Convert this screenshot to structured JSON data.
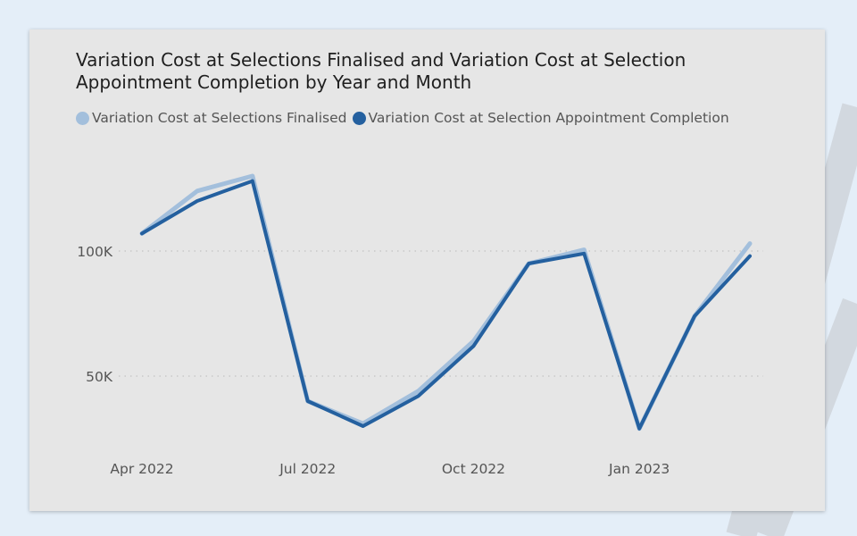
{
  "chart_data": {
    "type": "line",
    "title": "Variation Cost at Selections Finalised and Variation Cost at Selection Appointment Completion by Year and Month",
    "title_lines": [
      "Variation Cost at Selections Finalised and Variation Cost at Selection",
      "Appointment Completion by Year and Month"
    ],
    "x": [
      "2022-04",
      "2022-05",
      "2022-06",
      "2022-07",
      "2022-08",
      "2022-09",
      "2022-10",
      "2022-11",
      "2022-12",
      "2023-01",
      "2023-02",
      "2023-03"
    ],
    "x_tick_labels": [
      {
        "index": 0,
        "label": "Apr 2022"
      },
      {
        "index": 3,
        "label": "Jul 2022"
      },
      {
        "index": 6,
        "label": "Oct 2022"
      },
      {
        "index": 9,
        "label": "Jan 2023"
      }
    ],
    "y_ticks": [
      {
        "value": 50000,
        "label": "50K"
      },
      {
        "value": 100000,
        "label": 100000,
        "display": "100K"
      }
    ],
    "ylim": [
      20000,
      140000
    ],
    "grid": "dotted horizontal",
    "legend_position": "top-left",
    "series": [
      {
        "name": "Variation Cost at Selections Finalised",
        "color": "#a3bfdc",
        "values": [
          107000,
          124000,
          130000,
          40000,
          31000,
          44000,
          64000,
          95000,
          100500,
          29000,
          74000,
          103000
        ]
      },
      {
        "name": "Variation Cost at Selection Appointment Completion",
        "color": "#24609f",
        "values": [
          107000,
          120000,
          128000,
          40000,
          30000,
          42000,
          62000,
          95000,
          99000,
          29000,
          74000,
          98000
        ]
      }
    ]
  }
}
